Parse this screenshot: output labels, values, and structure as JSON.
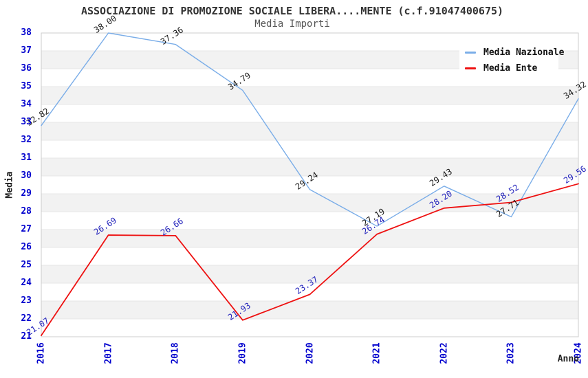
{
  "title": "ASSOCIAZIONE DI PROMOZIONE SOCIALE LIBERA....MENTE (c.f.91047400675)",
  "subtitle": "Media Importi",
  "chart_data": {
    "type": "line",
    "x": [
      2016,
      2017,
      2018,
      2019,
      2020,
      2021,
      2022,
      2023,
      2024
    ],
    "xlabel": "Anno",
    "ylabel": "Media",
    "ylim": [
      21,
      38
    ],
    "yticks": [
      21,
      22,
      23,
      24,
      25,
      26,
      27,
      28,
      29,
      30,
      31,
      32,
      33,
      34,
      35,
      36,
      37,
      38
    ],
    "grid": "horizontal-stripes",
    "legend_position": "top-right",
    "series": [
      {
        "name": "Media Nazionale",
        "color": "#7aade8",
        "label_color": "#1a1a1a",
        "values": [
          32.82,
          38.0,
          37.36,
          34.79,
          29.24,
          27.19,
          29.43,
          27.71,
          34.32
        ]
      },
      {
        "name": "Media Ente",
        "color": "#ee1111",
        "label_color": "#2222bb",
        "values": [
          21.07,
          26.69,
          26.66,
          21.93,
          23.37,
          26.74,
          28.2,
          28.52,
          29.56
        ]
      }
    ],
    "axis_tick_color": "#0000cd",
    "stripe_color": "#f2f2f2",
    "border_color": "#cccccc"
  }
}
